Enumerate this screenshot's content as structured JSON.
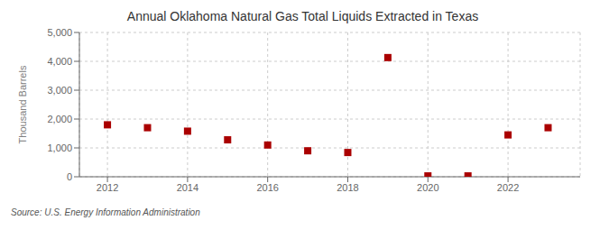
{
  "chart_data": {
    "type": "scatter",
    "title": "Annual Oklahoma Natural Gas Total Liquids Extracted in Texas",
    "ylabel": "Thousand Barrels",
    "source": "Source: U.S. Energy Information Administration",
    "x": [
      2012,
      2013,
      2014,
      2015,
      2016,
      2017,
      2018,
      2019,
      2020,
      2021,
      2022,
      2023
    ],
    "values": [
      1800,
      1700,
      1580,
      1280,
      1100,
      900,
      840,
      4130,
      30,
      30,
      1450,
      1700
    ],
    "color": "#aa0000",
    "marker": "square",
    "xlim": [
      2011.3,
      2023.8
    ],
    "xticks": [
      2012,
      2014,
      2016,
      2018,
      2020,
      2022
    ],
    "ylim": [
      0,
      5000
    ],
    "yticks": [
      0,
      {
        "value": 1000,
        "label": "1,000"
      },
      {
        "value": 2000,
        "label": "2,000"
      },
      {
        "value": 3000,
        "label": "3,000"
      },
      {
        "value": 4000,
        "label": "4,000"
      },
      {
        "value": 5000,
        "label": "5,000"
      }
    ],
    "grid": true
  }
}
